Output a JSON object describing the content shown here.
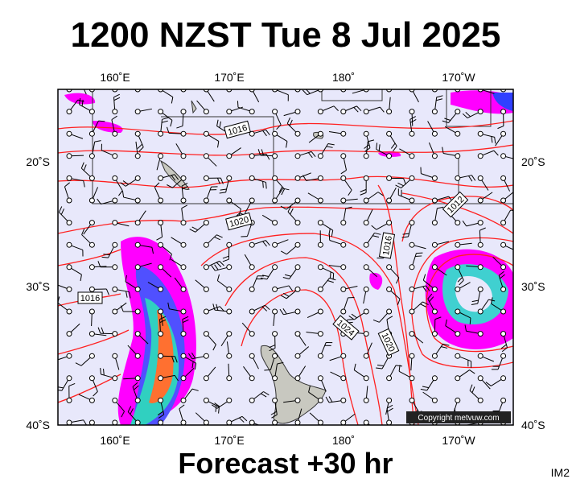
{
  "title": "1200 NZST Tue 8 Jul 2025",
  "map": {
    "lon_labels": [
      "160˚E",
      "170˚E",
      "180˚",
      "170˚W"
    ],
    "lat_labels": [
      "20˚S",
      "30˚S",
      "40˚S"
    ],
    "isobar_labels": [
      "1016",
      "1020",
      "1016",
      "1024",
      "1020",
      "1016",
      "1012"
    ],
    "copyright": "Copyright metvuw.com"
  },
  "footer": "Forecast +30 hr",
  "tag": "IM2"
}
